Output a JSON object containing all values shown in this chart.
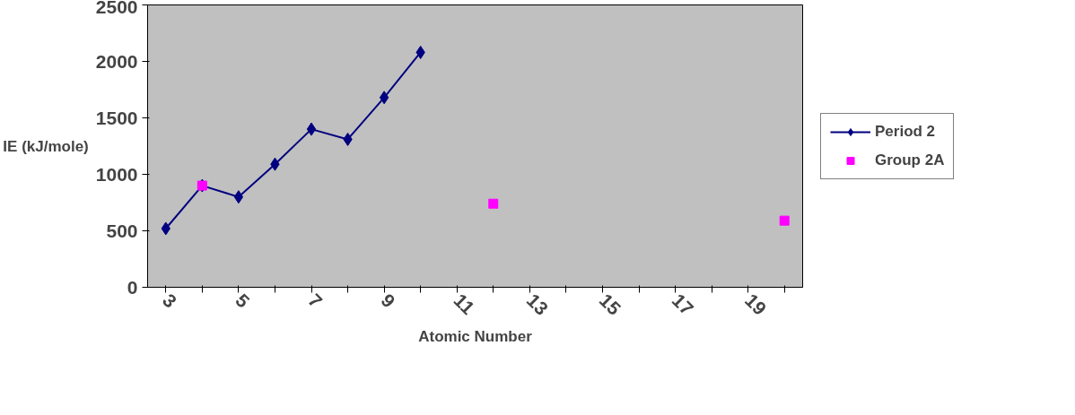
{
  "chart_data": {
    "type": "line",
    "xlabel": "Atomic Number",
    "ylabel": "IE (kJ/mole)",
    "categories": [
      "3",
      null,
      "5",
      null,
      "7",
      null,
      "9",
      null,
      "11",
      null,
      "13",
      null,
      "15",
      null,
      "17",
      null,
      "19",
      null
    ],
    "series": [
      {
        "name": "Period 2",
        "color": "#000080",
        "marker": "diamond",
        "values": [
          520,
          900,
          800,
          1090,
          1400,
          1310,
          1680,
          2080,
          null,
          null,
          null,
          null,
          null,
          null,
          null,
          null,
          null,
          null
        ]
      },
      {
        "name": "Group 2A",
        "type": "scatter",
        "color": "#ff00ff",
        "marker": "square",
        "values": [
          null,
          900,
          null,
          null,
          null,
          null,
          null,
          null,
          null,
          740,
          null,
          null,
          null,
          null,
          null,
          null,
          null,
          590
        ]
      }
    ],
    "ylim": [
      0,
      2500
    ],
    "yticks": [
      0,
      500,
      1000,
      1500,
      2000,
      2500
    ],
    "grid": false,
    "legend": "right"
  }
}
